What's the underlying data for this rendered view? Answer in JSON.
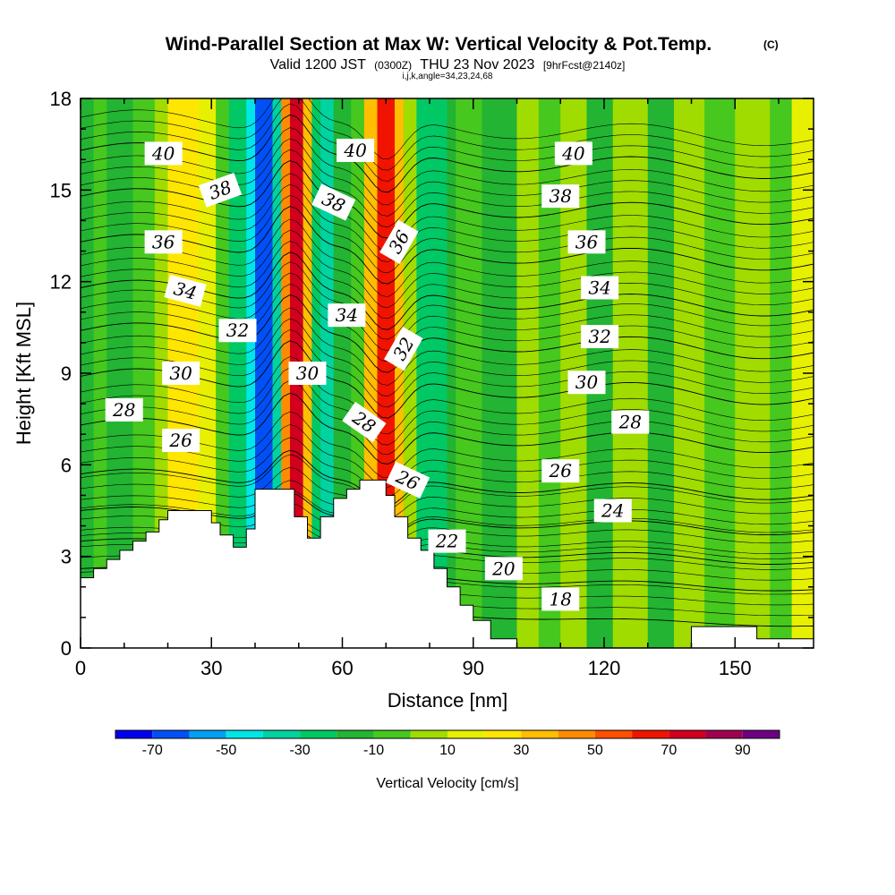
{
  "chart_data": {
    "type": "heatmap",
    "title": "Wind-Parallel Section at Max W: Vertical Velocity & Pot.Temp.",
    "copyright_mark": "(C)",
    "subtitle_parts": [
      "Valid 1200 JST",
      "(0300Z)",
      "THU 23 Nov 2023",
      "[9hrFcst@2140z]"
    ],
    "subtitle_small": "i,j,k,angle=34,23,24,68",
    "xlabel": "Distance [nm]",
    "ylabel": "Height [Kft MSL]",
    "xlim": [
      0,
      168
    ],
    "ylim": [
      0,
      18
    ],
    "x_ticks": [
      0,
      30,
      60,
      90,
      120,
      150
    ],
    "y_ticks": [
      0,
      3,
      6,
      9,
      12,
      15,
      18
    ],
    "colorbar": {
      "label": "Vertical Velocity [cm/s]",
      "tick_labels": [
        "-70",
        "-50",
        "-30",
        "-10",
        "10",
        "30",
        "50",
        "70",
        "90"
      ],
      "tick_values": [
        -70,
        -50,
        -30,
        -10,
        10,
        30,
        50,
        70,
        90
      ],
      "bounds": [
        -80,
        -70,
        -60,
        -50,
        -40,
        -30,
        -20,
        -10,
        0,
        10,
        20,
        30,
        40,
        50,
        60,
        70,
        80,
        90,
        100
      ],
      "colors": [
        "#0000f0",
        "#0050f5",
        "#00a0f5",
        "#00e6e6",
        "#00d2a0",
        "#00c864",
        "#22b432",
        "#46c81e",
        "#a0dc00",
        "#e6f000",
        "#ffe600",
        "#ffbe00",
        "#ff8c00",
        "#ff5000",
        "#f01400",
        "#d2001e",
        "#a00050",
        "#6e0082"
      ]
    },
    "w_bands": [
      {
        "x": [
          0,
          3
        ],
        "w": -15
      },
      {
        "x": [
          3,
          6
        ],
        "w": -5
      },
      {
        "x": [
          6,
          12
        ],
        "w": -15
      },
      {
        "x": [
          12,
          17
        ],
        "w": -8
      },
      {
        "x": [
          17,
          20
        ],
        "w": 5
      },
      {
        "x": [
          20,
          27
        ],
        "w": 28
      },
      {
        "x": [
          27,
          31
        ],
        "w": 12
      },
      {
        "x": [
          31,
          34
        ],
        "w": -5
      },
      {
        "x": [
          34,
          38
        ],
        "w": -25
      },
      {
        "x": [
          38,
          40
        ],
        "w": -45
      },
      {
        "x": [
          40,
          44
        ],
        "w": -65
      },
      {
        "x": [
          44,
          46
        ],
        "w": -40
      },
      {
        "x": [
          46,
          48
        ],
        "w": 45
      },
      {
        "x": [
          48,
          51
        ],
        "w": 72
      },
      {
        "x": [
          51,
          53
        ],
        "w": 30
      },
      {
        "x": [
          53,
          55
        ],
        "w": -25
      },
      {
        "x": [
          55,
          58
        ],
        "w": -40
      },
      {
        "x": [
          58,
          62
        ],
        "w": -15
      },
      {
        "x": [
          62,
          65
        ],
        "w": -10
      },
      {
        "x": [
          65,
          68
        ],
        "w": 35
      },
      {
        "x": [
          68,
          72
        ],
        "w": 62
      },
      {
        "x": [
          72,
          74
        ],
        "w": 35
      },
      {
        "x": [
          74,
          77
        ],
        "w": 5
      },
      {
        "x": [
          77,
          84
        ],
        "w": -25
      },
      {
        "x": [
          84,
          86
        ],
        "w": -15
      },
      {
        "x": [
          86,
          92
        ],
        "w": -5
      },
      {
        "x": [
          92,
          100
        ],
        "w": -12
      },
      {
        "x": [
          100,
          105
        ],
        "w": 5
      },
      {
        "x": [
          105,
          110
        ],
        "w": -8
      },
      {
        "x": [
          110,
          116
        ],
        "w": 5
      },
      {
        "x": [
          116,
          122
        ],
        "w": -12
      },
      {
        "x": [
          122,
          130
        ],
        "w": 5
      },
      {
        "x": [
          130,
          136
        ],
        "w": -12
      },
      {
        "x": [
          136,
          143
        ],
        "w": 5
      },
      {
        "x": [
          143,
          150
        ],
        "w": -8
      },
      {
        "x": [
          150,
          158
        ],
        "w": 5
      },
      {
        "x": [
          158,
          163
        ],
        "w": -8
      },
      {
        "x": [
          163,
          168
        ],
        "w": 12
      }
    ],
    "terrain": {
      "x": [
        0,
        3,
        3,
        6,
        6,
        9,
        9,
        12,
        12,
        15,
        15,
        18,
        18,
        20,
        20,
        30,
        30,
        32,
        32,
        35,
        35,
        38,
        38,
        40,
        40,
        49,
        49,
        52,
        52,
        55,
        55,
        58,
        58,
        61,
        61,
        64,
        64,
        70,
        70,
        72,
        72,
        75,
        75,
        78,
        78,
        81,
        81,
        84,
        84,
        87,
        87,
        90,
        90,
        94,
        94,
        100,
        100,
        140,
        140,
        155,
        155,
        168
      ],
      "height": [
        2.3,
        2.3,
        2.6,
        2.6,
        2.9,
        2.9,
        3.2,
        3.2,
        3.5,
        3.5,
        3.8,
        3.8,
        4.2,
        4.2,
        4.5,
        4.5,
        4.1,
        4.1,
        3.7,
        3.7,
        3.3,
        3.3,
        3.9,
        3.9,
        5.2,
        5.2,
        4.3,
        4.3,
        3.6,
        3.6,
        4.3,
        4.3,
        4.9,
        4.9,
        5.2,
        5.2,
        5.5,
        5.5,
        5.0,
        5.0,
        4.3,
        4.3,
        3.6,
        3.6,
        3.2,
        3.2,
        2.6,
        2.6,
        2.0,
        2.0,
        1.4,
        1.4,
        0.9,
        0.9,
        0.3,
        0.3,
        0.0,
        0.0,
        0.7,
        0.7,
        0.3,
        0.3
      ]
    },
    "theta_contours": [
      {
        "label": "18",
        "base": 1.4
      },
      {
        "label": "20",
        "base": 2.6
      },
      {
        "label": "22",
        "base": 3.5
      },
      {
        "label": "24",
        "base": 4.5
      },
      {
        "label": "26",
        "base": 5.7
      },
      {
        "label": "28",
        "base": 7.3
      },
      {
        "label": "30",
        "base": 8.9
      },
      {
        "label": "32",
        "base": 10.4
      },
      {
        "label": "34",
        "base": 11.8
      },
      {
        "label": "36",
        "base": 13.3
      },
      {
        "label": "38",
        "base": 14.8
      },
      {
        "label": "40",
        "base": 16.3
      }
    ],
    "contour_labels": [
      {
        "text": "40",
        "x": 19,
        "y": 16.2,
        "angle": 0
      },
      {
        "text": "38",
        "x": 32,
        "y": 15.0,
        "angle": -20
      },
      {
        "text": "36",
        "x": 19,
        "y": 13.3,
        "angle": 0
      },
      {
        "text": "34",
        "x": 24,
        "y": 11.7,
        "angle": 15
      },
      {
        "text": "32",
        "x": 36,
        "y": 10.4,
        "angle": 0
      },
      {
        "text": "30",
        "x": 23,
        "y": 9.0,
        "angle": 0
      },
      {
        "text": "28",
        "x": 10,
        "y": 7.8,
        "angle": 0
      },
      {
        "text": "26",
        "x": 23,
        "y": 6.8,
        "angle": 0
      },
      {
        "text": "40",
        "x": 63,
        "y": 16.3,
        "angle": 0
      },
      {
        "text": "38",
        "x": 58,
        "y": 14.6,
        "angle": 25
      },
      {
        "text": "36",
        "x": 73,
        "y": 13.3,
        "angle": -60
      },
      {
        "text": "34",
        "x": 61,
        "y": 10.9,
        "angle": 0
      },
      {
        "text": "32",
        "x": 74,
        "y": 9.8,
        "angle": -60
      },
      {
        "text": "30",
        "x": 52,
        "y": 9.0,
        "angle": 0
      },
      {
        "text": "28",
        "x": 65,
        "y": 7.4,
        "angle": 35
      },
      {
        "text": "26",
        "x": 75,
        "y": 5.5,
        "angle": 25
      },
      {
        "text": "22",
        "x": 84,
        "y": 3.5,
        "angle": 0
      },
      {
        "text": "20",
        "x": 97,
        "y": 2.6,
        "angle": 0
      },
      {
        "text": "18",
        "x": 110,
        "y": 1.6,
        "angle": 0
      },
      {
        "text": "40",
        "x": 113,
        "y": 16.2,
        "angle": 0
      },
      {
        "text": "38",
        "x": 110,
        "y": 14.8,
        "angle": 0
      },
      {
        "text": "36",
        "x": 116,
        "y": 13.3,
        "angle": 0
      },
      {
        "text": "34",
        "x": 119,
        "y": 11.8,
        "angle": 0
      },
      {
        "text": "32",
        "x": 119,
        "y": 10.2,
        "angle": 0
      },
      {
        "text": "30",
        "x": 116,
        "y": 8.7,
        "angle": 0
      },
      {
        "text": "28",
        "x": 126,
        "y": 7.4,
        "angle": 0
      },
      {
        "text": "26",
        "x": 110,
        "y": 5.8,
        "angle": 0
      },
      {
        "text": "24",
        "x": 122,
        "y": 4.5,
        "angle": 0
      }
    ]
  }
}
